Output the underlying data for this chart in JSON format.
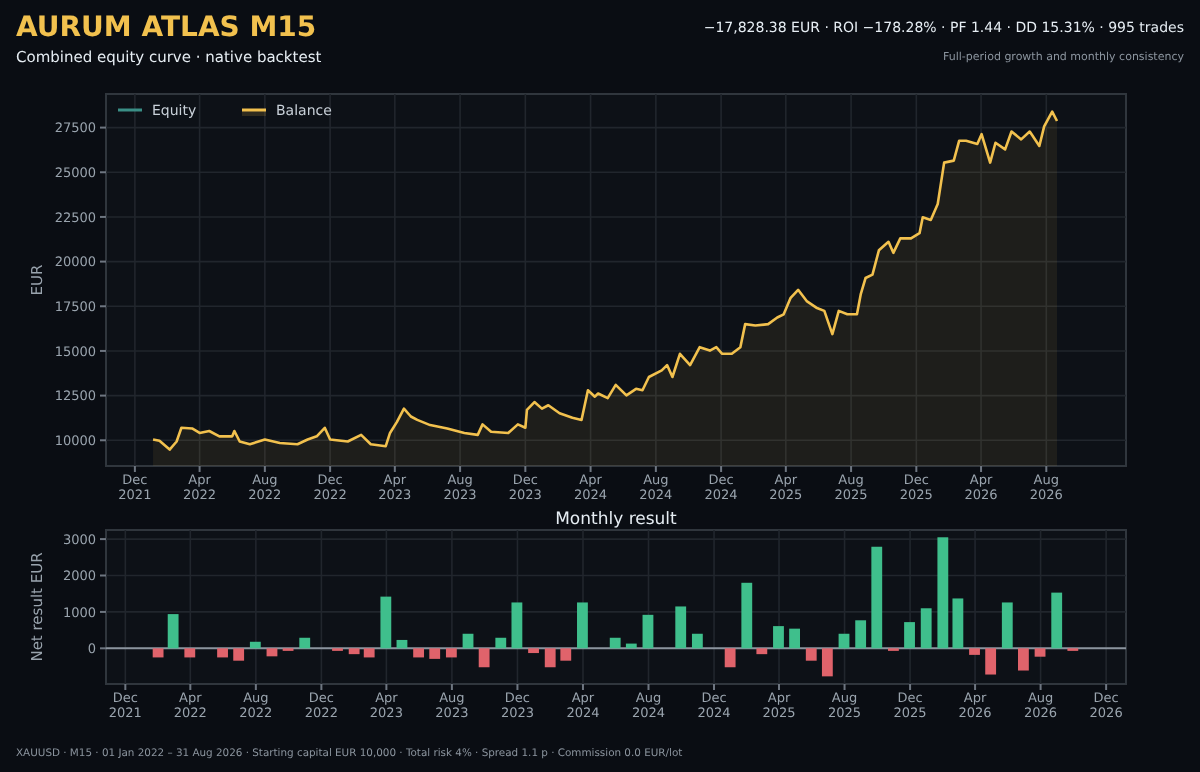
{
  "chart_data": [
    {
      "type": "area",
      "title": "AURUM ATLAS M15",
      "subtitle": "Combined equity curve · native backtest",
      "annotations": [
        "−17,828.38 EUR · ROI −178.28% · PF 1.44 · DD 15.31% · 995 trades",
        "Full-period growth and monthly consistency",
        "XAUUSD · M15 · 01 Jan 2022 – 31 Aug 2026 · Starting capital EUR 10,000 · Total risk 4% · Spread 1.1 p · Commission 0.0 EUR/lot"
      ],
      "ylabel": "EUR",
      "legend": "top left",
      "grid": true,
      "xlim": [
        "2021-10-08",
        "2026-12-28"
      ],
      "ylim": [
        8560,
        29380
      ],
      "xticks": [
        {
          "value": "2021-12-01",
          "label": "Dec\n2021"
        },
        {
          "value": "2022-04-01",
          "label": "Apr\n2022"
        },
        {
          "value": "2022-08-01",
          "label": "Aug\n2022"
        },
        {
          "value": "2022-12-01",
          "label": "Dec\n2022"
        },
        {
          "value": "2023-04-01",
          "label": "Apr\n2023"
        },
        {
          "value": "2023-08-01",
          "label": "Aug\n2023"
        },
        {
          "value": "2023-12-01",
          "label": "Dec\n2023"
        },
        {
          "value": "2024-04-01",
          "label": "Apr\n2024"
        },
        {
          "value": "2024-08-01",
          "label": "Aug\n2024"
        },
        {
          "value": "2024-12-01",
          "label": "Dec\n2024"
        },
        {
          "value": "2025-04-01",
          "label": "Apr\n2025"
        },
        {
          "value": "2025-08-01",
          "label": "Aug\n2025"
        },
        {
          "value": "2025-12-01",
          "label": "Dec\n2025"
        },
        {
          "value": "2026-04-01",
          "label": "Apr\n2026"
        },
        {
          "value": "2026-08-01",
          "label": "Aug\n2026"
        }
      ],
      "yticks": [
        10000,
        12500,
        15000,
        17500,
        20000,
        22500,
        25000,
        27500
      ],
      "series": [
        {
          "name": "Equity",
          "type": "line",
          "color": "#3a8f86"
        },
        {
          "name": "Balance",
          "color": "#f2c14e",
          "x": [
            "2022-01-04",
            "2022-01-16",
            "2022-02-04",
            "2022-02-17",
            "2022-02-26",
            "2022-03-18",
            "2022-04-01",
            "2022-04-19",
            "2022-05-08",
            "2022-06-01",
            "2022-06-05",
            "2022-06-15",
            "2022-07-04",
            "2022-08-01",
            "2022-08-29",
            "2022-10-01",
            "2022-10-20",
            "2022-11-06",
            "2022-11-21",
            "2022-12-01",
            "2023-01-03",
            "2023-01-28",
            "2023-02-15",
            "2023-03-15",
            "2023-03-23",
            "2023-04-05",
            "2023-04-18",
            "2023-05-01",
            "2023-05-13",
            "2023-06-06",
            "2023-07-08",
            "2023-08-09",
            "2023-09-03",
            "2023-09-12",
            "2023-09-28",
            "2023-10-30",
            "2023-11-17",
            "2023-12-01",
            "2023-12-04",
            "2023-12-18",
            "2024-01-01",
            "2024-01-13",
            "2024-02-03",
            "2024-02-27",
            "2024-03-15",
            "2024-03-27",
            "2024-04-09",
            "2024-04-15",
            "2024-05-03",
            "2024-05-18",
            "2024-06-07",
            "2024-06-25",
            "2024-07-07",
            "2024-07-19",
            "2024-08-12",
            "2024-08-22",
            "2024-09-01",
            "2024-09-15",
            "2024-10-04",
            "2024-10-22",
            "2024-11-10",
            "2024-11-22",
            "2024-12-03",
            "2024-12-21",
            "2025-01-06",
            "2025-01-15",
            "2025-02-03",
            "2025-02-27",
            "2025-03-16",
            "2025-03-28",
            "2025-04-10",
            "2025-04-24",
            "2025-05-10",
            "2025-05-28",
            "2025-06-12",
            "2025-06-27",
            "2025-07-09",
            "2025-07-25",
            "2025-08-12",
            "2025-08-19",
            "2025-08-28",
            "2025-09-10",
            "2025-09-22",
            "2025-10-10",
            "2025-10-19",
            "2025-11-01",
            "2025-11-21",
            "2025-12-07",
            "2025-12-13",
            "2025-12-28",
            "2026-01-10",
            "2026-01-22",
            "2026-02-09",
            "2026-02-19",
            "2026-03-04",
            "2026-03-25",
            "2026-04-02",
            "2026-04-18",
            "2026-04-28",
            "2026-05-16",
            "2026-05-28",
            "2026-06-15",
            "2026-07-01",
            "2026-07-19",
            "2026-07-28",
            "2026-08-12",
            "2026-08-21"
          ],
          "values": [
            10040,
            9970,
            9480,
            9930,
            10700,
            10660,
            10410,
            10520,
            10220,
            10220,
            10520,
            9930,
            9780,
            10040,
            9850,
            9780,
            10040,
            10220,
            10700,
            10040,
            9930,
            10300,
            9780,
            9670,
            10410,
            11030,
            11770,
            11330,
            11140,
            10850,
            10660,
            10410,
            10300,
            10890,
            10480,
            10410,
            10890,
            10700,
            11700,
            12140,
            11770,
            11960,
            11510,
            11260,
            11140,
            12800,
            12440,
            12620,
            12360,
            13100,
            12510,
            12880,
            12800,
            13540,
            13910,
            14210,
            13540,
            14840,
            14210,
            15210,
            15020,
            15210,
            14840,
            14840,
            15210,
            16500,
            16420,
            16500,
            16870,
            17050,
            17970,
            18420,
            17790,
            17420,
            17240,
            15940,
            17240,
            17050,
            17050,
            18160,
            19080,
            19270,
            20630,
            21110,
            20490,
            21300,
            21300,
            21590,
            22480,
            22330,
            23220,
            25540,
            25650,
            26760,
            26760,
            26580,
            27130,
            25540,
            26650,
            26280,
            27280,
            26840,
            27280,
            26470,
            27570,
            28390,
            27870
          ]
        }
      ]
    },
    {
      "type": "bar",
      "title": "Monthly result",
      "ylabel": "Net result EUR",
      "grid": true,
      "xlim": [
        "2021-10-26",
        "2027-01-07"
      ],
      "ylim": [
        -980,
        3250
      ],
      "xticks": [
        {
          "value": "2021-12-01",
          "label": "Dec\n2021"
        },
        {
          "value": "2022-04-01",
          "label": "Apr\n2022"
        },
        {
          "value": "2022-08-01",
          "label": "Aug\n2022"
        },
        {
          "value": "2022-12-01",
          "label": "Dec\n2022"
        },
        {
          "value": "2023-04-01",
          "label": "Apr\n2023"
        },
        {
          "value": "2023-08-01",
          "label": "Aug\n2023"
        },
        {
          "value": "2023-12-01",
          "label": "Dec\n2023"
        },
        {
          "value": "2024-04-01",
          "label": "Apr\n2024"
        },
        {
          "value": "2024-08-01",
          "label": "Aug\n2024"
        },
        {
          "value": "2024-12-01",
          "label": "Dec\n2024"
        },
        {
          "value": "2025-04-01",
          "label": "Apr\n2025"
        },
        {
          "value": "2025-08-01",
          "label": "Aug\n2025"
        },
        {
          "value": "2025-12-01",
          "label": "Dec\n2025"
        },
        {
          "value": "2026-04-01",
          "label": "Apr\n2026"
        },
        {
          "value": "2026-08-01",
          "label": "Aug\n2026"
        },
        {
          "value": "2026-12-01",
          "label": "Dec\n2026"
        }
      ],
      "yticks": [
        0,
        1000,
        2000,
        3000
      ],
      "ref_lines": [
        {
          "axis": "y",
          "value": 0,
          "color": "#8b949e"
        }
      ],
      "x": [
        "2022-01-31",
        "2022-02-28",
        "2022-03-31",
        "2022-04-30",
        "2022-05-31",
        "2022-06-30",
        "2022-07-31",
        "2022-08-31",
        "2022-09-30",
        "2022-10-31",
        "2022-11-30",
        "2022-12-31",
        "2023-01-31",
        "2023-02-28",
        "2023-03-31",
        "2023-04-30",
        "2023-05-31",
        "2023-06-30",
        "2023-07-31",
        "2023-08-31",
        "2023-09-30",
        "2023-10-31",
        "2023-11-30",
        "2023-12-31",
        "2024-01-31",
        "2024-02-29",
        "2024-03-31",
        "2024-04-30",
        "2024-05-31",
        "2024-06-30",
        "2024-07-31",
        "2024-08-31",
        "2024-09-30",
        "2024-10-31",
        "2024-11-30",
        "2024-12-31",
        "2025-01-31",
        "2025-02-28",
        "2025-03-31",
        "2025-04-30",
        "2025-05-31",
        "2025-06-30",
        "2025-07-31",
        "2025-08-31",
        "2025-09-30",
        "2025-10-31",
        "2025-11-30",
        "2025-12-31",
        "2026-01-31",
        "2026-02-28",
        "2026-03-31",
        "2026-04-30",
        "2026-05-31",
        "2026-06-30",
        "2026-07-31",
        "2026-08-31",
        "2026-09-30"
      ],
      "values": [
        -250,
        940,
        -250,
        null,
        -250,
        -340,
        180,
        -220,
        -70,
        290,
        null,
        -70,
        -160,
        -250,
        1420,
        230,
        -250,
        -290,
        -250,
        400,
        -520,
        290,
        1260,
        -130,
        -520,
        -340,
        1260,
        null,
        290,
        130,
        920,
        null,
        1150,
        400,
        null,
        -520,
        1800,
        -160,
        610,
        540,
        -340,
        -770,
        400,
        770,
        2790,
        -70,
        720,
        1100,
        3050,
        1370,
        -180,
        -720,
        1260,
        -610,
        -230,
        1530,
        -70
      ],
      "colors": [
        "#e0636b",
        "#3fbf8c",
        "#e0636b",
        null,
        "#e0636b",
        "#e0636b",
        "#3fbf8c",
        "#e0636b",
        "#e0636b",
        "#3fbf8c",
        null,
        "#e0636b",
        "#e0636b",
        "#e0636b",
        "#3fbf8c",
        "#3fbf8c",
        "#e0636b",
        "#e0636b",
        "#e0636b",
        "#3fbf8c",
        "#e0636b",
        "#3fbf8c",
        "#3fbf8c",
        "#e0636b",
        "#e0636b",
        "#e0636b",
        "#3fbf8c",
        null,
        "#3fbf8c",
        "#3fbf8c",
        "#3fbf8c",
        null,
        "#3fbf8c",
        "#3fbf8c",
        null,
        "#e0636b",
        "#3fbf8c",
        "#e0636b",
        "#3fbf8c",
        "#3fbf8c",
        "#e0636b",
        "#e0636b",
        "#3fbf8c",
        "#3fbf8c",
        "#3fbf8c",
        "#e0636b",
        "#3fbf8c",
        "#3fbf8c",
        "#3fbf8c",
        "#3fbf8c",
        "#e0636b",
        "#e0636b",
        "#3fbf8c",
        "#e0636b",
        "#e0636b",
        "#3fbf8c",
        "#e0636b"
      ]
    }
  ]
}
